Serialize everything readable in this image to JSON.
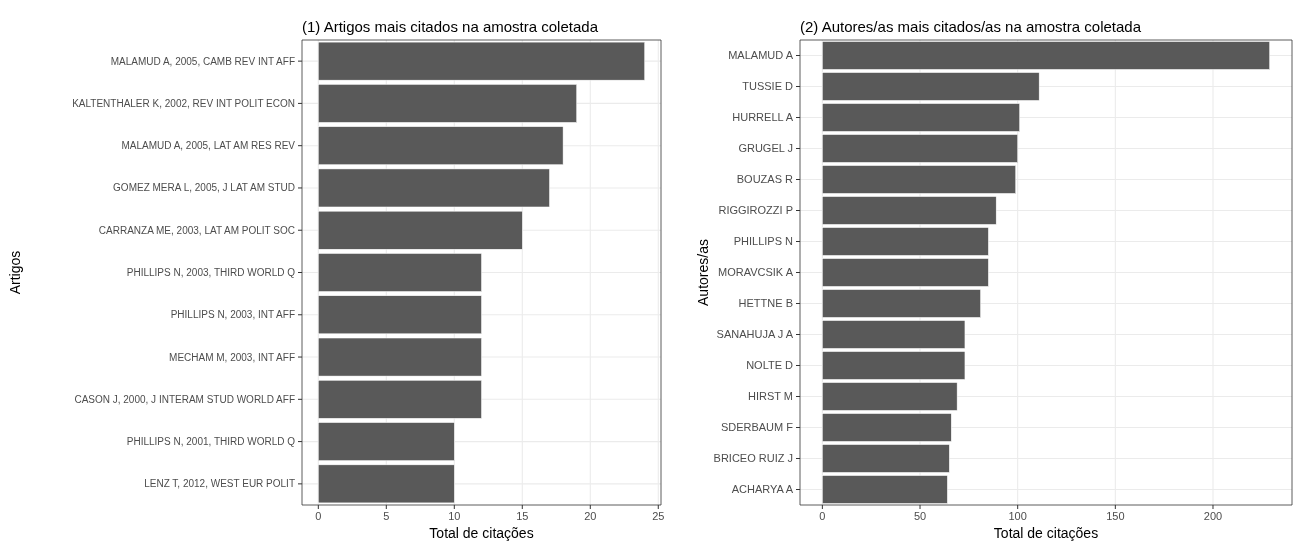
{
  "chart_data": [
    {
      "type": "bar",
      "orientation": "horizontal",
      "title": "(1) Artigos mais citados na amostra coletada",
      "xlabel": "Total de citações",
      "ylabel": "Artigos",
      "categories": [
        "MALAMUD A, 2005, CAMB REV INT AFF",
        "KALTENTHALER K, 2002, REV INT POLIT ECON",
        "MALAMUD A, 2005, LAT AM RES REV",
        "GOMEZ MERA L, 2005, J LAT AM STUD",
        "CARRANZA ME, 2003, LAT AM POLIT SOC",
        "PHILLIPS N, 2003, THIRD WORLD Q",
        "PHILLIPS N, 2003, INT AFF",
        "MECHAM M, 2003, INT AFF",
        "CASON J, 2000, J INTERAM STUD WORLD AFF",
        "PHILLIPS N, 2001, THIRD WORLD Q",
        "LENZ T, 2012, WEST EUR POLIT"
      ],
      "values": [
        24,
        19,
        18,
        17,
        15,
        12,
        12,
        12,
        12,
        10,
        10
      ],
      "color": "#595959",
      "xlim": [
        -1.2,
        25.2
      ],
      "xticks": [
        0,
        5,
        10,
        15,
        20,
        25
      ],
      "grid": true
    },
    {
      "type": "bar",
      "orientation": "horizontal",
      "title": "(2) Autores/as mais citados/as na amostra coletada",
      "xlabel": "Total de citações",
      "ylabel": "Autores/as",
      "categories": [
        "MALAMUD A",
        "TUSSIE D",
        "HURRELL A",
        "GRUGEL J",
        "BOUZAS R",
        "RIGGIROZZI P",
        "PHILLIPS N",
        "MORAVCSIK A",
        "HETTNE B",
        "SANAHUJA J A",
        "NOLTE D",
        "HIRST M",
        "SDERBAUM F",
        "BRICEO RUIZ J",
        "ACHARYA A"
      ],
      "values": [
        229,
        111,
        101,
        100,
        99,
        89,
        85,
        85,
        81,
        73,
        73,
        69,
        66,
        65,
        64
      ],
      "color": "#595959",
      "xlim": [
        -11.45,
        240.45
      ],
      "xticks": [
        0,
        50,
        100,
        150,
        200
      ],
      "grid": true
    }
  ]
}
